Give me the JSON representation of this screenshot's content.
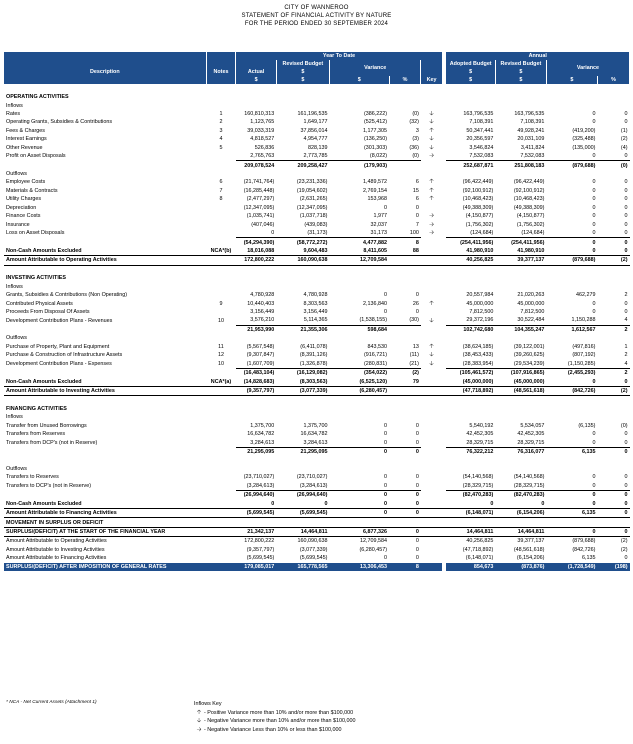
{
  "header": {
    "entity": "CITY OF WANNEROO",
    "statement": "STATEMENT OF FINANCIAL ACTIVITY BY NATURE",
    "period": "FOR THE PERIOD ENDED 30 SEPTEMBER 2024"
  },
  "columns": {
    "description": "Description",
    "notes": "Notes",
    "ytd_group": "Year To Date",
    "annual_group": "Annual",
    "actual": "Actual",
    "revised_budget": "Revised Budget",
    "variance": "Variance",
    "adopted_budget": "Adopted Budget",
    "dollar": "$",
    "percent": "%",
    "key": "Key"
  },
  "rows": [
    {
      "type": "blank"
    },
    {
      "type": "section",
      "desc": "OPERATING ACTIVITIES"
    },
    {
      "type": "sub",
      "desc": "Inflows"
    },
    {
      "desc": "Rates",
      "note": "1",
      "v": [
        "160,810,313",
        "161,196,535",
        "(386,222)",
        "(0)",
        "down",
        "163,796,535",
        "163,796,535",
        "0",
        "0"
      ]
    },
    {
      "desc": "Operating Grants, Subsidies & Contributions",
      "note": "2",
      "v": [
        "1,123,765",
        "1,649,177",
        "(525,412)",
        "(32)",
        "down",
        "7,108,391",
        "7,108,391",
        "0",
        "0"
      ]
    },
    {
      "desc": "Fees & Charges",
      "note": "3",
      "v": [
        "39,033,319",
        "37,856,014",
        "1,177,305",
        "3",
        "up",
        "50,347,441",
        "49,928,241",
        "(419,200)",
        "(1)"
      ]
    },
    {
      "desc": "Interest Earnings",
      "note": "4",
      "v": [
        "4,818,527",
        "4,954,777",
        "(136,250)",
        "(3)",
        "down",
        "20,356,597",
        "20,031,109",
        "(325,488)",
        "(2)"
      ]
    },
    {
      "desc": "Other Revenue",
      "note": "5",
      "v": [
        "526,836",
        "828,139",
        "(301,303)",
        "(36)",
        "down",
        "3,546,824",
        "3,411,824",
        "(135,000)",
        "(4)"
      ]
    },
    {
      "desc": "Profit on Asset Disposals",
      "note": "",
      "v": [
        "2,765,763",
        "2,773,785",
        "(8,022)",
        "(0)",
        "right",
        "7,532,083",
        "7,532,083",
        "0",
        "0"
      ]
    },
    {
      "type": "total",
      "desc": "",
      "note": "",
      "v": [
        "209,078,524",
        "209,258,427",
        "(179,903)",
        "",
        "",
        "252,687,871",
        "251,808,183",
        "(879,688)",
        "(0)"
      ]
    },
    {
      "type": "sub",
      "desc": "Outflows"
    },
    {
      "desc": "Employee Costs",
      "note": "6",
      "v": [
        "(21,741,764)",
        "(23,231,336)",
        "1,489,572",
        "6",
        "up",
        "(96,422,449)",
        "(96,422,449)",
        "0",
        "0"
      ]
    },
    {
      "desc": "Materials & Contracts",
      "note": "7",
      "v": [
        "(16,285,448)",
        "(19,054,602)",
        "2,769,154",
        "15",
        "up",
        "(92,100,912)",
        "(92,100,912)",
        "0",
        "0"
      ]
    },
    {
      "desc": "Utility Charges",
      "note": "8",
      "v": [
        "(2,477,297)",
        "(2,631,265)",
        "153,968",
        "6",
        "up",
        "(10,468,423)",
        "(10,468,423)",
        "0",
        "0"
      ]
    },
    {
      "desc": "Depreciation",
      "note": "",
      "v": [
        "(12,347,095)",
        "(12,347,095)",
        "0",
        "0",
        "",
        "(49,388,309)",
        "(49,388,309)",
        "0",
        "0"
      ]
    },
    {
      "desc": "Finance Costs",
      "note": "",
      "v": [
        "(1,035,741)",
        "(1,037,718)",
        "1,977",
        "0",
        "right",
        "(4,150,877)",
        "(4,150,877)",
        "0",
        "0"
      ]
    },
    {
      "desc": "Insurance",
      "note": "",
      "v": [
        "(407,046)",
        "(439,083)",
        "32,037",
        "7",
        "right",
        "(1,756,302)",
        "(1,756,302)",
        "0",
        "0"
      ]
    },
    {
      "desc": "Loss on Asset Disposals",
      "note": "",
      "v": [
        "0",
        "(31,173)",
        "31,173",
        "100",
        "right",
        "(124,684)",
        "(124,684)",
        "0",
        "0"
      ]
    },
    {
      "type": "total",
      "desc": "",
      "note": "",
      "v": [
        "(54,294,390)",
        "(58,772,272)",
        "4,477,882",
        "8",
        "",
        "(254,411,956)",
        "(254,411,956)",
        "0",
        "0"
      ]
    },
    {
      "type": "bold",
      "desc": "Non-Cash Amounts Excluded",
      "note": "NCA*(b)",
      "v": [
        "18,016,088",
        "9,604,483",
        "8,411,605",
        "88",
        "",
        "41,980,910",
        "41,980,910",
        "0",
        "0"
      ]
    },
    {
      "type": "boxed",
      "desc": "Amount Attributable to Operating Activities",
      "note": "",
      "v": [
        "172,800,222",
        "160,090,638",
        "12,709,584",
        "",
        "",
        "40,256,825",
        "39,377,137",
        "(879,688)",
        "(2)"
      ]
    },
    {
      "type": "blank"
    },
    {
      "type": "section",
      "desc": "INVESTING ACTIVITIES"
    },
    {
      "type": "sub",
      "desc": "Inflows"
    },
    {
      "desc": "Grants, Subsidies & Contributions (Non Operating)",
      "note": "",
      "v": [
        "4,780,928",
        "4,780,928",
        "0",
        "0",
        "",
        "20,557,984",
        "21,020,263",
        "462,279",
        "2"
      ]
    },
    {
      "desc": "Contributed Physical Assets",
      "note": "9",
      "v": [
        "10,440,403",
        "8,303,563",
        "2,136,840",
        "26",
        "up",
        "45,000,000",
        "45,000,000",
        "0",
        "0"
      ]
    },
    {
      "desc": "Proceeds From Disposal Of Assets",
      "note": "",
      "v": [
        "3,156,449",
        "3,156,449",
        "0",
        "0",
        "",
        "7,812,500",
        "7,812,500",
        "0",
        "0"
      ]
    },
    {
      "desc": "Development Contribution Plans - Revenues",
      "note": "10",
      "v": [
        "3,576,210",
        "5,114,365",
        "(1,538,155)",
        "(30)",
        "down",
        "29,372,196",
        "30,522,484",
        "1,150,288",
        "4"
      ]
    },
    {
      "type": "total",
      "desc": "",
      "note": "",
      "v": [
        "21,953,990",
        "21,355,306",
        "598,684",
        "",
        "",
        "102,742,680",
        "104,355,247",
        "1,612,567",
        "2"
      ]
    },
    {
      "type": "sub",
      "desc": "Outflows"
    },
    {
      "desc": "Purchase of Property, Plant and Equipment",
      "note": "11",
      "v": [
        "(5,567,548)",
        "(6,411,078)",
        "843,530",
        "13",
        "up",
        "(38,624,185)",
        "(39,122,001)",
        "(497,816)",
        "1"
      ]
    },
    {
      "desc": "Purchase & Construction of Infrastructure Assets",
      "note": "12",
      "v": [
        "(9,307,847)",
        "(8,391,126)",
        "(916,721)",
        "(11)",
        "down",
        "(38,453,433)",
        "(39,260,625)",
        "(807,192)",
        "2"
      ]
    },
    {
      "desc": "Development Contribution Plans - Expenses",
      "note": "10",
      "v": [
        "(1,607,709)",
        "(1,326,878)",
        "(280,831)",
        "(21)",
        "down",
        "(28,383,954)",
        "(29,534,239)",
        "(1,150,285)",
        "4"
      ]
    },
    {
      "type": "total",
      "desc": "",
      "note": "",
      "v": [
        "(16,483,104)",
        "(16,129,082)",
        "(354,022)",
        "(2)",
        "",
        "(105,461,572)",
        "(107,916,865)",
        "(2,455,293)",
        "2"
      ]
    },
    {
      "type": "bold",
      "desc": "Non-Cash Amounts Excluded",
      "note": "NCA*(a)",
      "v": [
        "(14,828,683)",
        "(8,303,563)",
        "(6,525,120)",
        "79",
        "",
        "(45,000,000)",
        "(45,000,000)",
        "0",
        "0"
      ]
    },
    {
      "type": "boxed",
      "desc": "Amount Attributable to Investing Activities",
      "note": "",
      "v": [
        "(9,357,797)",
        "(3,077,339)",
        "(6,280,457)",
        "",
        "",
        "(47,718,892)",
        "(48,561,618)",
        "(842,726)",
        "(2)"
      ]
    },
    {
      "type": "blank"
    },
    {
      "type": "section",
      "desc": "FINANCING ACTIVITIES"
    },
    {
      "type": "sub",
      "desc": "Inflows"
    },
    {
      "desc": "Transfer from Unused Borrowings",
      "note": "",
      "v": [
        "1,375,700",
        "1,375,700",
        "0",
        "0",
        "",
        "5,540,192",
        "5,534,057",
        "(6,135)",
        "(0)"
      ]
    },
    {
      "desc": "Transfers from Reserves",
      "note": "",
      "v": [
        "16,634,782",
        "16,634,782",
        "0",
        "0",
        "",
        "42,452,305",
        "42,452,305",
        "0",
        "0"
      ]
    },
    {
      "desc": "Transfers from DCP's (not in Reserve)",
      "note": "",
      "v": [
        "3,284,613",
        "3,284,613",
        "0",
        "0",
        "",
        "28,329,715",
        "28,329,715",
        "0",
        "0"
      ]
    },
    {
      "type": "total",
      "desc": "",
      "note": "",
      "v": [
        "21,295,095",
        "21,295,095",
        "0",
        "0",
        "",
        "76,322,212",
        "76,316,077",
        "6,135",
        "0"
      ]
    },
    {
      "type": "blank"
    },
    {
      "type": "sub",
      "desc": "Outflows"
    },
    {
      "desc": "Transfers to Reserves",
      "note": "",
      "v": [
        "(23,710,027)",
        "(23,710,027)",
        "0",
        "0",
        "",
        "(54,140,568)",
        "(54,140,568)",
        "0",
        "0"
      ]
    },
    {
      "desc": "Transfers to DCP's (not in Reserve)",
      "note": "",
      "v": [
        "(3,284,613)",
        "(3,284,613)",
        "0",
        "0",
        "",
        "(28,329,715)",
        "(28,329,715)",
        "0",
        "0"
      ]
    },
    {
      "type": "total",
      "desc": "",
      "note": "",
      "v": [
        "(26,994,640)",
        "(26,994,640)",
        "0",
        "0",
        "",
        "(82,470,283)",
        "(82,470,283)",
        "0",
        "0"
      ]
    },
    {
      "type": "bold",
      "desc": "Non-Cash Amounts Excluded",
      "note": "",
      "v": [
        "0",
        "0",
        "0",
        "0",
        "",
        "0",
        "0",
        "0",
        "0"
      ]
    },
    {
      "type": "boxed",
      "desc": "Amount Attributable to Financing Activities",
      "note": "",
      "v": [
        "(5,699,545)",
        "(5,699,545)",
        "0",
        "0",
        "",
        "(6,148,071)",
        "(6,154,206)",
        "6,135",
        "0"
      ]
    },
    {
      "type": "boxed",
      "desc": "MOVEMENT IN SURPLUS OR DEFICIT",
      "note": "",
      "v": [
        "",
        "",
        "",
        "",
        "",
        "",
        "",
        "",
        ""
      ]
    },
    {
      "type": "boxed",
      "desc": "SURPLUS/(DEFICIT) AT THE START OF THE FINANCIAL YEAR",
      "note": "",
      "v": [
        "21,342,137",
        "14,464,811",
        "6,877,326",
        "0",
        "",
        "14,464,811",
        "14,464,811",
        "0",
        "0"
      ]
    },
    {
      "desc": "Amount Attributable to Operating Activities",
      "note": "",
      "v": [
        "172,800,222",
        "160,090,638",
        "12,709,584",
        "0",
        "",
        "40,256,825",
        "39,377,137",
        "(879,688)",
        "(2)"
      ]
    },
    {
      "desc": "Amount Attributable to Investing Activities",
      "note": "",
      "v": [
        "(9,357,797)",
        "(3,077,339)",
        "(6,280,457)",
        "0",
        "",
        "(47,718,892)",
        "(48,561,618)",
        "(842,726)",
        "(2)"
      ]
    },
    {
      "desc": "Amount Attributable to Financing Activities",
      "note": "",
      "v": [
        "(5,699,545)",
        "(5,699,545)",
        "0",
        "0",
        "",
        "(6,148,071)",
        "(6,154,206)",
        "6,135",
        "0"
      ]
    },
    {
      "type": "grand",
      "desc": "SURPLUS/(DEFICIT) AFTER IMPOSITION OF GENERAL RATES",
      "note": "",
      "v": [
        "179,085,017",
        "165,778,565",
        "13,306,453",
        "8",
        "",
        "854,673",
        "(873,876)",
        "(1,728,549)",
        "(198)"
      ]
    }
  ],
  "footnote": "* NCA - Net Current Assets (Attachment 1)",
  "key": {
    "title": "Inflows Key",
    "items": [
      {
        "arrow": "up",
        "text": "- Positive Variance more than 10% and/or more than $100,000"
      },
      {
        "arrow": "down",
        "text": "- Negative Variance more than 10% and/or more than $100,000"
      },
      {
        "arrow": "right",
        "text": "- Negative Variance Less than 10% or less than $100,000"
      }
    ]
  }
}
